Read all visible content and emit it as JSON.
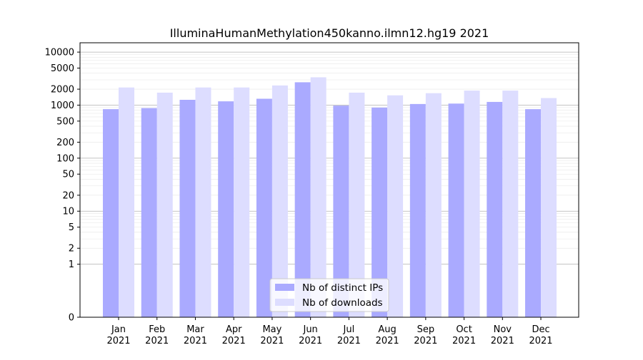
{
  "chart_data": {
    "type": "bar",
    "title": "IlluminaHumanMethylation450kanno.ilmn12.hg19 2021",
    "xlabel": "",
    "ylabel": "",
    "y_scale": "symlog",
    "ylim": [
      0,
      15000
    ],
    "y_ticks": [
      0,
      1,
      2,
      5,
      10,
      20,
      50,
      100,
      200,
      500,
      1000,
      2000,
      5000,
      10000
    ],
    "grid": true,
    "legend_position": "bottom-center",
    "categories": [
      "Jan\n2021",
      "Feb\n2021",
      "Mar\n2021",
      "Apr\n2021",
      "May\n2021",
      "Jun\n2021",
      "Jul\n2021",
      "Aug\n2021",
      "Sep\n2021",
      "Oct\n2021",
      "Nov\n2021",
      "Dec\n2021"
    ],
    "series": [
      {
        "name": "Nb of distinct IPs",
        "color": "#aaaaff",
        "values": [
          840,
          880,
          1260,
          1180,
          1320,
          2700,
          980,
          900,
          1050,
          1070,
          1150,
          840
        ]
      },
      {
        "name": "Nb of downloads",
        "color": "#ddddff",
        "values": [
          2150,
          1720,
          2150,
          2150,
          2350,
          3350,
          1720,
          1530,
          1680,
          1880,
          1880,
          1360
        ]
      }
    ]
  }
}
